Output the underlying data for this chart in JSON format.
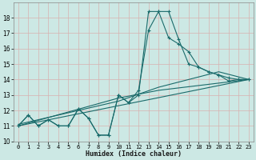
{
  "title": "",
  "xlabel": "Humidex (Indice chaleur)",
  "background_color": "#cce8e4",
  "grid_color": "#b0d8d4",
  "line_color": "#1a6b6b",
  "xlim": [
    -0.5,
    23.5
  ],
  "ylim": [
    10,
    19
  ],
  "xticks": [
    0,
    1,
    2,
    3,
    4,
    5,
    6,
    7,
    8,
    9,
    10,
    11,
    12,
    13,
    14,
    15,
    16,
    17,
    18,
    19,
    20,
    21,
    22,
    23
  ],
  "yticks": [
    10,
    11,
    12,
    13,
    14,
    15,
    16,
    17,
    18
  ],
  "curve1_x": [
    0,
    1,
    2,
    3,
    4,
    5,
    6,
    7,
    8,
    9,
    10,
    11,
    12,
    13,
    14,
    15,
    16,
    17,
    18,
    19,
    20,
    21,
    22,
    23
  ],
  "curve1_y": [
    11.0,
    11.7,
    11.0,
    11.4,
    11.0,
    11.0,
    12.1,
    11.5,
    10.4,
    10.4,
    13.0,
    12.5,
    13.0,
    18.4,
    18.4,
    16.7,
    16.3,
    15.8,
    14.8,
    14.5,
    14.3,
    13.9,
    14.0,
    14.0
  ],
  "curve2_x": [
    0,
    1,
    2,
    3,
    4,
    5,
    6,
    7,
    8,
    9,
    10,
    11,
    12,
    13,
    14,
    15,
    16,
    17,
    18,
    19,
    20,
    21,
    22,
    23
  ],
  "curve2_y": [
    11.0,
    11.7,
    11.0,
    11.4,
    11.0,
    11.0,
    12.1,
    11.5,
    10.4,
    10.4,
    13.0,
    12.5,
    13.3,
    17.2,
    18.4,
    18.4,
    16.6,
    15.0,
    14.8,
    14.5,
    14.3,
    14.1,
    14.0,
    14.0
  ],
  "trend1_x": [
    0,
    23
  ],
  "trend1_y": [
    11.0,
    14.0
  ],
  "trend2_x": [
    0,
    10,
    14,
    23
  ],
  "trend2_y": [
    11.0,
    12.8,
    13.3,
    14.0
  ],
  "trend3_x": [
    0,
    10,
    14,
    20,
    23
  ],
  "trend3_y": [
    11.1,
    12.6,
    13.5,
    14.5,
    14.0
  ]
}
